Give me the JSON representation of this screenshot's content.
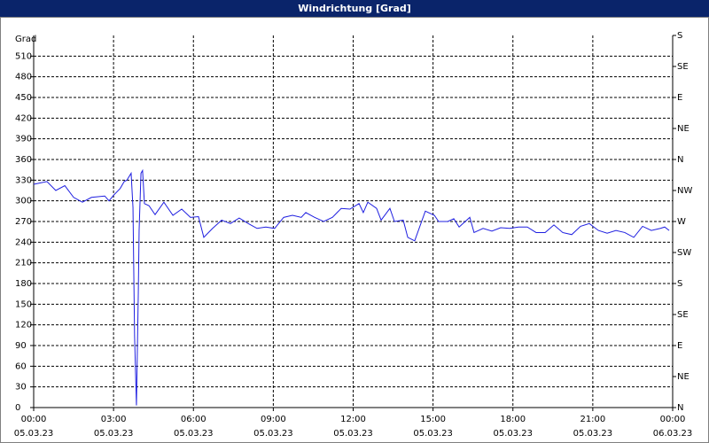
{
  "chart_data": {
    "type": "line",
    "title": "Windrichtung [Grad]",
    "y_label": "Grad",
    "x": [
      0,
      0.5,
      0.83,
      1.17,
      1.5,
      1.83,
      2.17,
      2.67,
      2.83,
      3.0,
      3.25,
      3.4,
      3.5,
      3.66,
      3.73,
      3.79,
      3.86,
      3.93,
      3.96,
      4.03,
      4.09,
      4.16,
      4.33,
      4.56,
      4.89,
      5.23,
      5.56,
      5.89,
      6.19,
      6.39,
      6.72,
      7.06,
      7.39,
      7.72,
      8.06,
      8.39,
      8.72,
      9.05,
      9.39,
      9.72,
      10.05,
      10.22,
      10.55,
      10.89,
      11.22,
      11.55,
      11.88,
      12.22,
      12.38,
      12.55,
      12.88,
      13.05,
      13.38,
      13.55,
      13.88,
      14.05,
      14.31,
      14.71,
      15.05,
      15.21,
      15.55,
      15.78,
      15.98,
      16.38,
      16.54,
      16.88,
      17.21,
      17.54,
      17.88,
      18.21,
      18.54,
      18.87,
      19.21,
      19.54,
      19.87,
      20.21,
      20.54,
      20.87,
      21.21,
      21.54,
      21.87,
      22.2,
      22.54,
      22.87,
      23.2,
      23.54,
      23.7,
      23.87
    ],
    "series": [
      {
        "name": "Windrichtung",
        "color": "#1f1fe0",
        "values": [
          324,
          328,
          315,
          322,
          305,
          298,
          305,
          307,
          300,
          308,
          318,
          328,
          330,
          340,
          290,
          103,
          3,
          167,
          257,
          340,
          344,
          296,
          293,
          280,
          298,
          279,
          288,
          276,
          277,
          247,
          260,
          272,
          267,
          275,
          267,
          260,
          262,
          260,
          276,
          279,
          276,
          283,
          276,
          270,
          276,
          289,
          288,
          296,
          283,
          298,
          289,
          272,
          289,
          270,
          272,
          247,
          242,
          285,
          279,
          270,
          270,
          274,
          262,
          276,
          254,
          260,
          256,
          261,
          260,
          262,
          262,
          254,
          254,
          265,
          254,
          251,
          263,
          267,
          257,
          253,
          257,
          254,
          247,
          263,
          257,
          260,
          262,
          257
        ]
      }
    ],
    "xlim": [
      0,
      24
    ],
    "xticks": [
      {
        "value": 0,
        "label": "00:00"
      },
      {
        "value": 3,
        "label": "03:00"
      },
      {
        "value": 6,
        "label": "06:00"
      },
      {
        "value": 9,
        "label": "09:00"
      },
      {
        "value": 12,
        "label": "12:00"
      },
      {
        "value": 15,
        "label": "15:00"
      },
      {
        "value": 18,
        "label": "18:00"
      },
      {
        "value": 21,
        "label": "21:00"
      },
      {
        "value": 24,
        "label": "00:00"
      }
    ],
    "xtick_dates": [
      "05.03.23",
      "05.03.23",
      "05.03.23",
      "05.03.23",
      "05.03.23",
      "05.03.23",
      "05.03.23",
      "05.03.23",
      "06.03.23"
    ],
    "ylim": [
      0,
      540
    ],
    "yticks": [
      0,
      30,
      60,
      90,
      120,
      150,
      180,
      210,
      240,
      270,
      300,
      330,
      360,
      390,
      420,
      450,
      480,
      510
    ],
    "y2lim": [
      0,
      540
    ],
    "y2ticks": [
      {
        "value": 0,
        "label": "N"
      },
      {
        "value": 45,
        "label": "NE"
      },
      {
        "value": 90,
        "label": "E"
      },
      {
        "value": 135,
        "label": "SE"
      },
      {
        "value": 180,
        "label": "S"
      },
      {
        "value": 225,
        "label": "SW"
      },
      {
        "value": 270,
        "label": "W"
      },
      {
        "value": 315,
        "label": "NW"
      },
      {
        "value": 360,
        "label": "N"
      },
      {
        "value": 405,
        "label": "NE"
      },
      {
        "value": 450,
        "label": "E"
      },
      {
        "value": 495,
        "label": "SE"
      },
      {
        "value": 540,
        "label": "S"
      }
    ],
    "grid": true
  }
}
